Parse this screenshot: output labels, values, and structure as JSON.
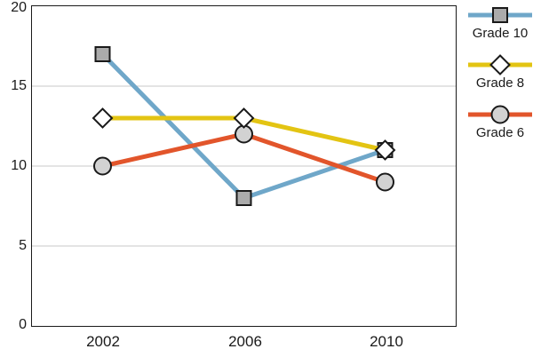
{
  "chart_data": {
    "type": "line",
    "title": "",
    "xlabel": "",
    "ylabel": "",
    "categories": [
      "2002",
      "2006",
      "2010"
    ],
    "series": [
      {
        "name": "Grade 10",
        "values": [
          17,
          8,
          11
        ],
        "color": "#6FA7C9",
        "marker": "square",
        "marker_fill": "#ABABAB"
      },
      {
        "name": "Grade 8",
        "values": [
          13,
          13,
          11
        ],
        "color": "#E3C413",
        "marker": "diamond",
        "marker_fill": "#FFFFFF"
      },
      {
        "name": "Grade 6",
        "values": [
          10,
          12,
          9
        ],
        "color": "#E2552B",
        "marker": "circle",
        "marker_fill": "#D2D2D2"
      }
    ],
    "ylim": [
      0,
      20
    ],
    "y_tick_labels": [
      "20",
      "15",
      "10",
      "5",
      "0"
    ],
    "y_gridlines": [
      5,
      10,
      15
    ],
    "gridline_color": "#C8C8C8",
    "axis_color": "#1a1a1a",
    "marker_stroke": "#1a1a1a",
    "line_width": 5,
    "grid": true,
    "legend_position": "right",
    "draw_order": [
      0,
      2,
      1
    ]
  }
}
